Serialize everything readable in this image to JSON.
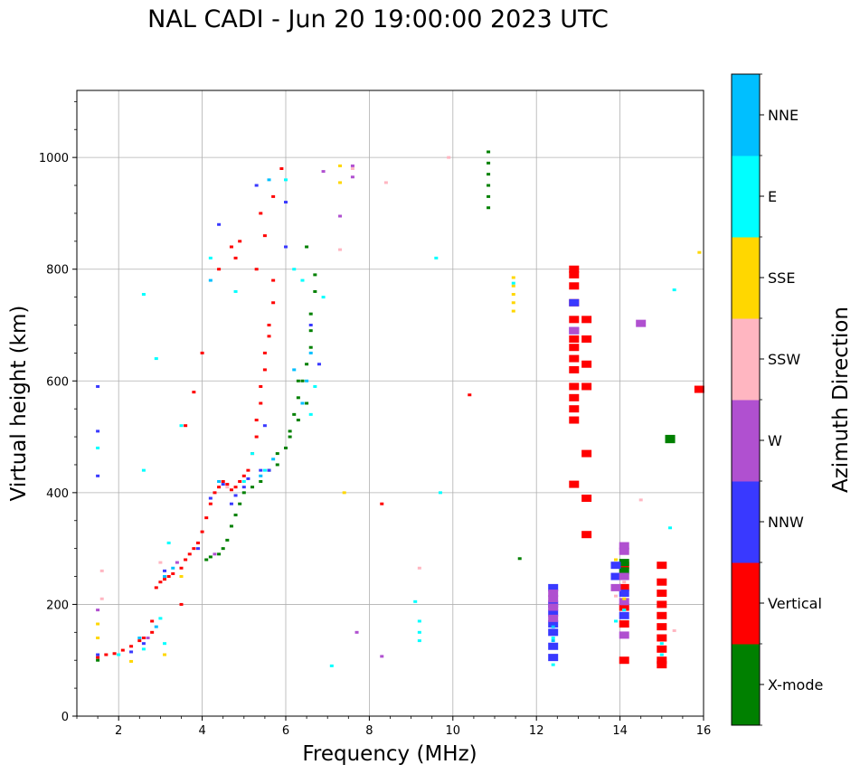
{
  "chart_data": {
    "type": "scatter",
    "title": "NAL CADI - Jun 20 19:00:00 2023 UTC",
    "xlabel": "Frequency (MHz)",
    "ylabel": "Virtual height (km)",
    "xlim": [
      1,
      16
    ],
    "ylim": [
      0,
      1120
    ],
    "xticks": [
      2,
      4,
      6,
      8,
      10,
      12,
      14,
      16
    ],
    "yticks": [
      0,
      200,
      400,
      600,
      800,
      1000
    ],
    "grid": true,
    "colorbar": {
      "label": "Azimuth Direction",
      "categories": [
        {
          "name": "X-mode",
          "color": "#008000"
        },
        {
          "name": "Vertical",
          "color": "#ff0000"
        },
        {
          "name": "NNW",
          "color": "#3939ff"
        },
        {
          "name": "W",
          "color": "#b050d0"
        },
        {
          "name": "SSW",
          "color": "#ffb6c1"
        },
        {
          "name": "SSE",
          "color": "#ffd700"
        },
        {
          "name": "E",
          "color": "#00ffff"
        },
        {
          "name": "NNE",
          "color": "#00bfff"
        }
      ]
    },
    "series": [
      {
        "name": "Vertical",
        "points": [
          [
            1.5,
            105
          ],
          [
            1.7,
            110
          ],
          [
            1.9,
            112
          ],
          [
            2.1,
            118
          ],
          [
            2.3,
            125
          ],
          [
            2.5,
            135
          ],
          [
            2.6,
            140
          ],
          [
            2.8,
            150
          ],
          [
            2.8,
            170
          ],
          [
            2.9,
            230
          ],
          [
            3.0,
            240
          ],
          [
            3.1,
            245
          ],
          [
            3.2,
            250
          ],
          [
            3.3,
            255
          ],
          [
            3.5,
            265
          ],
          [
            3.6,
            280
          ],
          [
            3.7,
            290
          ],
          [
            3.8,
            300
          ],
          [
            3.9,
            310
          ],
          [
            4.0,
            330
          ],
          [
            4.1,
            355
          ],
          [
            4.2,
            380
          ],
          [
            4.3,
            400
          ],
          [
            4.4,
            410
          ],
          [
            4.5,
            420
          ],
          [
            4.6,
            415
          ],
          [
            4.7,
            405
          ],
          [
            4.8,
            410
          ],
          [
            4.9,
            420
          ],
          [
            5.0,
            430
          ],
          [
            5.1,
            440
          ],
          [
            5.2,
            470
          ],
          [
            5.3,
            500
          ],
          [
            5.3,
            530
          ],
          [
            5.4,
            560
          ],
          [
            5.4,
            590
          ],
          [
            5.5,
            620
          ],
          [
            5.5,
            650
          ],
          [
            5.6,
            680
          ],
          [
            5.6,
            700
          ],
          [
            5.7,
            740
          ],
          [
            5.7,
            780
          ],
          [
            5.3,
            800
          ],
          [
            5.5,
            860
          ],
          [
            5.4,
            900
          ],
          [
            5.7,
            930
          ],
          [
            5.9,
            980
          ],
          [
            4.7,
            840
          ],
          [
            4.9,
            850
          ],
          [
            4.8,
            820
          ],
          [
            4.4,
            800
          ],
          [
            4.0,
            650
          ],
          [
            3.8,
            580
          ],
          [
            3.6,
            520
          ],
          [
            3.5,
            200
          ],
          [
            8.3,
            380
          ],
          [
            10.4,
            575
          ],
          [
            12.9,
            800
          ],
          [
            12.9,
            790
          ],
          [
            12.9,
            770
          ],
          [
            12.9,
            740
          ],
          [
            12.9,
            710
          ],
          [
            13.2,
            710
          ],
          [
            12.9,
            675
          ],
          [
            13.2,
            675
          ],
          [
            12.9,
            660
          ],
          [
            12.9,
            640
          ],
          [
            12.9,
            620
          ],
          [
            13.2,
            630
          ],
          [
            13.2,
            590
          ],
          [
            12.9,
            590
          ],
          [
            12.9,
            570
          ],
          [
            12.9,
            550
          ],
          [
            12.9,
            530
          ],
          [
            13.2,
            470
          ],
          [
            12.9,
            415
          ],
          [
            13.2,
            390
          ],
          [
            13.2,
            325
          ],
          [
            14.1,
            270
          ],
          [
            14.1,
            230
          ],
          [
            14.1,
            195
          ],
          [
            14.1,
            165
          ],
          [
            14.1,
            100
          ],
          [
            15.0,
            270
          ],
          [
            15.0,
            240
          ],
          [
            15.0,
            220
          ],
          [
            15.0,
            200
          ],
          [
            15.0,
            180
          ],
          [
            15.0,
            160
          ],
          [
            15.0,
            140
          ],
          [
            15.0,
            120
          ],
          [
            15.0,
            100
          ],
          [
            15.0,
            92
          ],
          [
            15.9,
            585
          ]
        ]
      },
      {
        "name": "X-mode",
        "points": [
          [
            1.5,
            100
          ],
          [
            4.1,
            280
          ],
          [
            4.2,
            285
          ],
          [
            4.4,
            290
          ],
          [
            4.5,
            300
          ],
          [
            4.6,
            315
          ],
          [
            4.7,
            340
          ],
          [
            4.8,
            360
          ],
          [
            4.9,
            380
          ],
          [
            5.0,
            400
          ],
          [
            5.2,
            410
          ],
          [
            5.4,
            420
          ],
          [
            5.6,
            440
          ],
          [
            5.8,
            450
          ],
          [
            5.8,
            470
          ],
          [
            6.0,
            480
          ],
          [
            6.1,
            510
          ],
          [
            6.2,
            540
          ],
          [
            6.3,
            570
          ],
          [
            6.4,
            600
          ],
          [
            6.5,
            630
          ],
          [
            6.6,
            660
          ],
          [
            6.6,
            690
          ],
          [
            6.6,
            720
          ],
          [
            6.7,
            760
          ],
          [
            6.7,
            790
          ],
          [
            6.5,
            840
          ],
          [
            6.1,
            500
          ],
          [
            6.3,
            530
          ],
          [
            6.5,
            560
          ],
          [
            6.3,
            600
          ],
          [
            10.85,
            1010
          ],
          [
            10.85,
            990
          ],
          [
            10.85,
            970
          ],
          [
            10.85,
            950
          ],
          [
            10.85,
            930
          ],
          [
            10.85,
            910
          ],
          [
            11.6,
            282
          ],
          [
            14.1,
            275
          ],
          [
            14.1,
            260
          ],
          [
            15.2,
            497
          ],
          [
            15.2,
            495
          ]
        ]
      },
      {
        "name": "NNW",
        "points": [
          [
            1.5,
            110
          ],
          [
            1.5,
            590
          ],
          [
            1.5,
            510
          ],
          [
            1.5,
            430
          ],
          [
            2.3,
            115
          ],
          [
            2.6,
            130
          ],
          [
            3.1,
            260
          ],
          [
            3.9,
            300
          ],
          [
            4.2,
            390
          ],
          [
            4.5,
            415
          ],
          [
            4.7,
            380
          ],
          [
            4.8,
            395
          ],
          [
            5.0,
            410
          ],
          [
            5.1,
            425
          ],
          [
            5.4,
            440
          ],
          [
            5.6,
            440
          ],
          [
            5.5,
            520
          ],
          [
            6.0,
            920
          ],
          [
            6.0,
            840
          ],
          [
            6.6,
            700
          ],
          [
            6.8,
            630
          ],
          [
            5.3,
            950
          ],
          [
            4.4,
            880
          ],
          [
            12.4,
            230
          ],
          [
            12.4,
            200
          ],
          [
            12.4,
            185
          ],
          [
            12.4,
            165
          ],
          [
            12.4,
            150
          ],
          [
            12.4,
            125
          ],
          [
            12.4,
            105
          ],
          [
            12.9,
            740
          ],
          [
            12.9,
            690
          ],
          [
            13.9,
            270
          ],
          [
            13.9,
            250
          ],
          [
            14.1,
            220
          ],
          [
            14.1,
            180
          ]
        ]
      },
      {
        "name": "W",
        "points": [
          [
            1.5,
            190
          ],
          [
            2.7,
            140
          ],
          [
            3.4,
            275
          ],
          [
            4.3,
            290
          ],
          [
            6.9,
            975
          ],
          [
            7.3,
            895
          ],
          [
            7.6,
            985
          ],
          [
            7.6,
            965
          ],
          [
            7.7,
            150
          ],
          [
            8.3,
            107
          ],
          [
            12.4,
            220
          ],
          [
            12.4,
            210
          ],
          [
            12.4,
            195
          ],
          [
            12.4,
            175
          ],
          [
            12.9,
            690
          ],
          [
            14.1,
            305
          ],
          [
            14.1,
            295
          ],
          [
            14.1,
            250
          ],
          [
            14.1,
            205
          ],
          [
            14.1,
            145
          ],
          [
            13.9,
            230
          ],
          [
            14.5,
            703
          ]
        ]
      },
      {
        "name": "SSW",
        "points": [
          [
            1.6,
            260
          ],
          [
            1.6,
            210
          ],
          [
            3.0,
            275
          ],
          [
            4.6,
            410
          ],
          [
            7.3,
            835
          ],
          [
            7.6,
            980
          ],
          [
            8.4,
            955
          ],
          [
            9.2,
            265
          ],
          [
            9.9,
            1000
          ],
          [
            14.5,
            387
          ],
          [
            15.3,
            153
          ],
          [
            13.9,
            215
          ],
          [
            14.1,
            240
          ],
          [
            14.1,
            190
          ]
        ]
      },
      {
        "name": "SSE",
        "points": [
          [
            1.5,
            165
          ],
          [
            1.5,
            140
          ],
          [
            2.3,
            98
          ],
          [
            3.1,
            110
          ],
          [
            3.5,
            250
          ],
          [
            7.3,
            985
          ],
          [
            7.3,
            955
          ],
          [
            7.4,
            400
          ],
          [
            11.45,
            785
          ],
          [
            11.45,
            770
          ],
          [
            11.45,
            755
          ],
          [
            11.45,
            740
          ],
          [
            11.45,
            725
          ],
          [
            13.9,
            280
          ],
          [
            14.1,
            210
          ],
          [
            15.9,
            830
          ]
        ]
      },
      {
        "name": "E",
        "points": [
          [
            1.5,
            480
          ],
          [
            2.0,
            110
          ],
          [
            2.6,
            120
          ],
          [
            3.0,
            175
          ],
          [
            3.1,
            130
          ],
          [
            3.2,
            310
          ],
          [
            3.5,
            520
          ],
          [
            4.2,
            820
          ],
          [
            4.8,
            760
          ],
          [
            5.0,
            420
          ],
          [
            5.2,
            470
          ],
          [
            5.5,
            440
          ],
          [
            6.2,
            800
          ],
          [
            6.4,
            780
          ],
          [
            6.6,
            540
          ],
          [
            6.7,
            590
          ],
          [
            6.9,
            750
          ],
          [
            7.1,
            90
          ],
          [
            9.1,
            205
          ],
          [
            9.2,
            170
          ],
          [
            9.2,
            135
          ],
          [
            9.2,
            150
          ],
          [
            9.6,
            820
          ],
          [
            9.7,
            400
          ],
          [
            12.4,
            140
          ],
          [
            12.4,
            92
          ],
          [
            13.9,
            170
          ],
          [
            14.1,
            190
          ],
          [
            15.0,
            110
          ],
          [
            15.0,
            130
          ],
          [
            15.2,
            337
          ],
          [
            15.3,
            763
          ],
          [
            2.6,
            755
          ],
          [
            2.9,
            640
          ],
          [
            2.6,
            440
          ],
          [
            11.45,
            775
          ],
          [
            6.0,
            960
          ]
        ]
      },
      {
        "name": "NNE",
        "points": [
          [
            2.5,
            140
          ],
          [
            2.9,
            160
          ],
          [
            3.1,
            250
          ],
          [
            3.3,
            265
          ],
          [
            4.4,
            420
          ],
          [
            5.4,
            430
          ],
          [
            5.7,
            460
          ],
          [
            6.2,
            620
          ],
          [
            6.6,
            650
          ],
          [
            6.5,
            600
          ],
          [
            6.4,
            560
          ],
          [
            5.6,
            960
          ],
          [
            4.2,
            780
          ],
          [
            12.4,
            160
          ],
          [
            12.4,
            135
          ]
        ]
      }
    ]
  }
}
